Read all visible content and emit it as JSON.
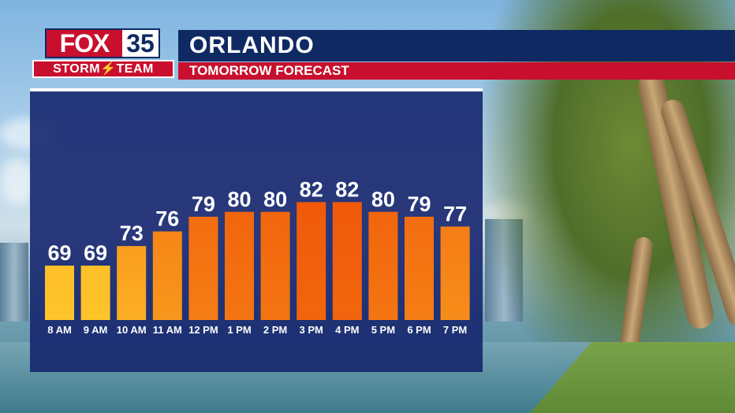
{
  "header": {
    "logo_text": "FOX",
    "logo_number": "35",
    "logo_tagline": "STORM⚡TEAM",
    "location": "ORLANDO",
    "subtitle": "TOMORROW FORECAST"
  },
  "colors": {
    "navy": "#0f2a63",
    "red": "#c8102e",
    "panel": "#16266e",
    "bar_cool": "#ffc42a",
    "bar_hot": "#f05a0a"
  },
  "chart_data": {
    "type": "bar",
    "title": "",
    "xlabel": "",
    "ylabel": "",
    "categories": [
      "8 AM",
      "9 AM",
      "10 AM",
      "11 AM",
      "12 PM",
      "1 PM",
      "2 PM",
      "3 PM",
      "4 PM",
      "5 PM",
      "6 PM",
      "7 PM"
    ],
    "values": [
      69,
      69,
      73,
      76,
      79,
      80,
      80,
      82,
      82,
      80,
      79,
      77
    ],
    "value_labels": [
      "69",
      "69",
      "73",
      "76",
      "79",
      "80",
      "80",
      "82",
      "82",
      "80",
      "79",
      "77"
    ],
    "grid": false,
    "legend": "none"
  }
}
